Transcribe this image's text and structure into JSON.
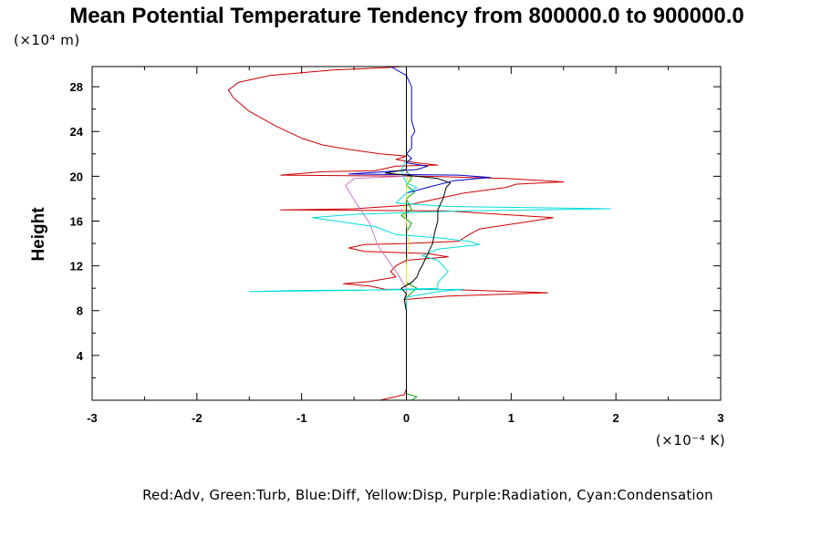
{
  "chart_data": {
    "type": "line",
    "title": "Mean Potential Temperature Tendency from 800000.0 to 900000.0",
    "ylabel": "Height",
    "yunit": "(×10⁴ m)",
    "xunit": "(×10⁻⁴ K)",
    "legend": "Red:Adv, Green:Turb, Blue:Diff, Yellow:Disp, Purple:Radiation, Cyan:Condensation",
    "xlim": [
      -3,
      3
    ],
    "ylim": [
      0,
      29.8
    ],
    "xticks": [
      -3,
      -2,
      -1,
      0,
      1,
      2,
      3
    ],
    "yticks": [
      4,
      8,
      12,
      16,
      20,
      24,
      28
    ],
    "grid": false,
    "series": [
      {
        "name": "Adv",
        "color": "#cc0000",
        "points": [
          [
            -0.25,
            0
          ],
          [
            -0.02,
            0.5
          ],
          [
            0.0,
            1
          ],
          [
            0.0,
            4
          ],
          [
            0.0,
            6
          ],
          [
            0.0,
            8
          ],
          [
            -0.02,
            9.0
          ],
          [
            0.4,
            9.3
          ],
          [
            1.35,
            9.6
          ],
          [
            0.7,
            9.8
          ],
          [
            0.3,
            9.9
          ],
          [
            -0.2,
            9.9
          ],
          [
            -0.35,
            10.2
          ],
          [
            -0.6,
            10.4
          ],
          [
            -0.35,
            10.6
          ],
          [
            -0.1,
            11.0
          ],
          [
            -0.15,
            11.5
          ],
          [
            -0.1,
            12.0
          ],
          [
            0.0,
            12.5
          ],
          [
            0.4,
            12.8
          ],
          [
            0.2,
            13.1
          ],
          [
            -0.4,
            13.3
          ],
          [
            -0.55,
            13.6
          ],
          [
            -0.4,
            13.9
          ],
          [
            0.0,
            14.0
          ],
          [
            0.5,
            14.2
          ],
          [
            0.6,
            14.8
          ],
          [
            0.7,
            15.3
          ],
          [
            1.2,
            16.0
          ],
          [
            1.4,
            16.3
          ],
          [
            0.9,
            16.6
          ],
          [
            0.4,
            16.9
          ],
          [
            -1.2,
            17.0
          ],
          [
            -0.5,
            17.1
          ],
          [
            0.0,
            17.4
          ],
          [
            0.3,
            18.0
          ],
          [
            0.55,
            18.5
          ],
          [
            0.95,
            19.0
          ],
          [
            1.05,
            19.3
          ],
          [
            1.5,
            19.5
          ],
          [
            0.95,
            19.8
          ],
          [
            0.2,
            20.0
          ],
          [
            -1.2,
            20.1
          ],
          [
            -0.8,
            20.4
          ],
          [
            -0.3,
            20.5
          ],
          [
            -0.1,
            20.9
          ],
          [
            0.3,
            21.0
          ],
          [
            0.1,
            21.2
          ],
          [
            -0.1,
            21.5
          ],
          [
            0.0,
            21.8
          ],
          [
            -0.25,
            22.0
          ],
          [
            -0.55,
            22.4
          ],
          [
            -0.8,
            22.8
          ],
          [
            -1.0,
            23.4
          ],
          [
            -1.25,
            24.5
          ],
          [
            -1.5,
            25.8
          ],
          [
            -1.65,
            27.0
          ],
          [
            -1.7,
            27.7
          ],
          [
            -1.6,
            28.4
          ],
          [
            -1.3,
            29.0
          ],
          [
            -0.7,
            29.5
          ],
          [
            -0.2,
            29.7
          ],
          [
            -0.05,
            29.8
          ]
        ]
      },
      {
        "name": "Turb",
        "color": "#00aa00",
        "points": [
          [
            0.05,
            0
          ],
          [
            0.1,
            0.3
          ],
          [
            0.0,
            0.6
          ],
          [
            0.0,
            4
          ],
          [
            0.0,
            8
          ],
          [
            -0.02,
            9.0
          ],
          [
            0.05,
            9.6
          ],
          [
            0.1,
            10.0
          ],
          [
            0.0,
            10.5
          ],
          [
            0.0,
            14
          ],
          [
            0.0,
            15.0
          ],
          [
            0.05,
            15.8
          ],
          [
            -0.05,
            16.5
          ],
          [
            0.05,
            17.0
          ],
          [
            0.0,
            18.0
          ],
          [
            0.08,
            18.6
          ],
          [
            0.0,
            19.2
          ],
          [
            0.05,
            19.8
          ],
          [
            0.0,
            20.5
          ],
          [
            0.0,
            29.8
          ]
        ]
      },
      {
        "name": "Diff",
        "color": "#0000cc",
        "points": [
          [
            0.0,
            0
          ],
          [
            0.0,
            4
          ],
          [
            0.0,
            8
          ],
          [
            0.0,
            12
          ],
          [
            0.0,
            16
          ],
          [
            0.0,
            18.5
          ],
          [
            0.2,
            19.0
          ],
          [
            0.45,
            19.6
          ],
          [
            0.8,
            19.9
          ],
          [
            0.5,
            20.1
          ],
          [
            -0.55,
            20.2
          ],
          [
            0.1,
            20.6
          ],
          [
            0.2,
            20.9
          ],
          [
            0.0,
            21.2
          ],
          [
            0.05,
            21.6
          ],
          [
            0.0,
            22.0
          ],
          [
            0.05,
            22.5
          ],
          [
            0.05,
            23.5
          ],
          [
            0.08,
            24.0
          ],
          [
            0.05,
            25.0
          ],
          [
            0.05,
            26.5
          ],
          [
            0.05,
            28.0
          ],
          [
            0.0,
            29.0
          ],
          [
            -0.15,
            29.8
          ]
        ]
      },
      {
        "name": "Disp",
        "color": "#eeee00",
        "points": [
          [
            0.0,
            0
          ],
          [
            0.0,
            4
          ],
          [
            0.0,
            8
          ],
          [
            0.0,
            12
          ],
          [
            0.02,
            14
          ],
          [
            0.0,
            16
          ],
          [
            -0.02,
            17
          ],
          [
            0.0,
            18
          ],
          [
            0.0,
            19
          ],
          [
            0.02,
            19.5
          ],
          [
            0.0,
            20
          ],
          [
            0.0,
            29.8
          ]
        ]
      },
      {
        "name": "Radiation",
        "color": "#cc77cc",
        "points": [
          [
            0.0,
            0
          ],
          [
            0.0,
            4
          ],
          [
            0.0,
            8
          ],
          [
            0.0,
            10
          ],
          [
            -0.1,
            11.5
          ],
          [
            -0.25,
            13.5
          ],
          [
            -0.28,
            14.0
          ],
          [
            -0.3,
            14.5
          ],
          [
            -0.35,
            15.8
          ],
          [
            -0.45,
            17.2
          ],
          [
            -0.52,
            18.2
          ],
          [
            -0.58,
            19.2
          ],
          [
            -0.5,
            19.8
          ],
          [
            0.0,
            20.0
          ],
          [
            0.0,
            29.8
          ]
        ]
      },
      {
        "name": "Condensation",
        "color": "#00dddd",
        "points": [
          [
            0.0,
            0
          ],
          [
            0.0,
            4
          ],
          [
            0.0,
            8
          ],
          [
            0.0,
            9.2
          ],
          [
            0.3,
            9.7
          ],
          [
            0.55,
            9.9
          ],
          [
            -1.05,
            9.8
          ],
          [
            -1.5,
            9.7
          ],
          [
            -0.5,
            9.8
          ],
          [
            0.3,
            10.0
          ],
          [
            0.3,
            10.5
          ],
          [
            0.35,
            11.0
          ],
          [
            0.4,
            11.5
          ],
          [
            0.35,
            12.0
          ],
          [
            0.3,
            12.5
          ],
          [
            0.15,
            12.9
          ],
          [
            0.3,
            13.5
          ],
          [
            0.7,
            13.9
          ],
          [
            0.6,
            14.2
          ],
          [
            0.3,
            14.5
          ],
          [
            -0.1,
            14.8
          ],
          [
            -0.3,
            15.5
          ],
          [
            -0.9,
            16.3
          ],
          [
            -0.5,
            16.6
          ],
          [
            0.5,
            16.9
          ],
          [
            1.95,
            17.1
          ],
          [
            0.4,
            17.3
          ],
          [
            -0.1,
            17.6
          ],
          [
            0.0,
            18.5
          ],
          [
            0.1,
            19.0
          ],
          [
            0.0,
            19.4
          ],
          [
            -0.05,
            20.5
          ],
          [
            0.0,
            21.5
          ],
          [
            0.0,
            22.5
          ],
          [
            0.0,
            26
          ],
          [
            0.0,
            29.8
          ]
        ]
      },
      {
        "name": "",
        "color": "#000000",
        "points": [
          [
            0.0,
            0
          ],
          [
            0.0,
            4
          ],
          [
            0.0,
            8
          ],
          [
            -0.02,
            9.0
          ],
          [
            0.0,
            9.5
          ],
          [
            -0.05,
            10.0
          ],
          [
            0.05,
            10.5
          ],
          [
            0.1,
            11.0
          ],
          [
            0.12,
            11.5
          ],
          [
            0.15,
            12.0
          ],
          [
            0.2,
            13.0
          ],
          [
            0.25,
            14.0
          ],
          [
            0.27,
            15.0
          ],
          [
            0.3,
            16.0
          ],
          [
            0.3,
            17.0
          ],
          [
            0.35,
            18.0
          ],
          [
            0.38,
            19.0
          ],
          [
            0.42,
            19.4
          ],
          [
            0.3,
            19.8
          ],
          [
            0.0,
            20.1
          ],
          [
            -0.2,
            20.3
          ],
          [
            0.0,
            20.6
          ],
          [
            0.0,
            22.0
          ],
          [
            0.0,
            29.8
          ]
        ]
      }
    ]
  }
}
